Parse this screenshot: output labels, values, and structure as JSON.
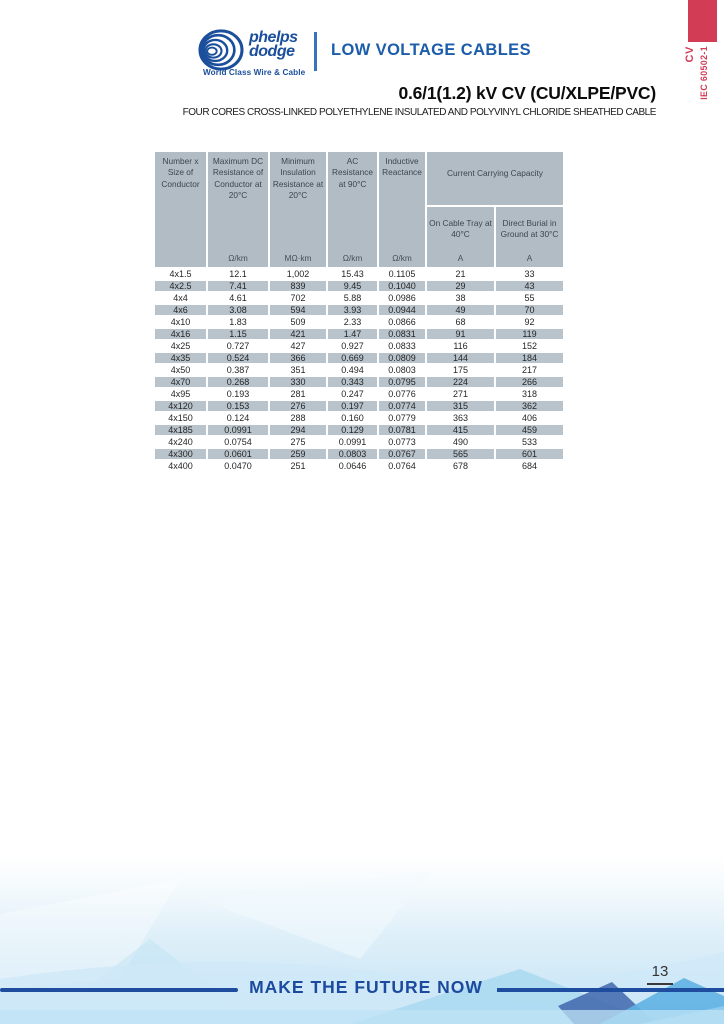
{
  "header": {
    "logo": {
      "name_line1": "phelps",
      "name_line2": "dodge",
      "tagline": "World Class Wire & Cable"
    },
    "banner": "LOW VOLTAGE CABLES"
  },
  "side_tab": {
    "product": "CV",
    "standard": "IEC 60502-1"
  },
  "title": "0.6/1(1.2) kV CV (CU/XLPE/PVC)",
  "subtitle": "FOUR CORES CROSS-LINKED POLYETHYLENE INSULATED AND POLYVINYL CHLORIDE SHEATHED CABLE",
  "table": {
    "group_header": "Current Carrying Capacity",
    "columns": [
      {
        "label": "Number x Size of Conductor",
        "unit": ""
      },
      {
        "label": "Maximum DC Resistance of Conductor at 20°C",
        "unit": "Ω/km"
      },
      {
        "label": "Minimum Insulation Resistance at 20°C",
        "unit": "MΩ·km"
      },
      {
        "label": "AC Resistance at 90°C",
        "unit": "Ω/km"
      },
      {
        "label": "Inductive Reactance",
        "unit": "Ω/km"
      },
      {
        "label": "On Cable Tray at 40°C",
        "unit": "A"
      },
      {
        "label": "Direct Burial in Ground at 30°C",
        "unit": "A"
      }
    ],
    "rows": [
      [
        "4x1.5",
        "12.1",
        "1,002",
        "15.43",
        "0.1105",
        "21",
        "33"
      ],
      [
        "4x2.5",
        "7.41",
        "839",
        "9.45",
        "0.1040",
        "29",
        "43"
      ],
      [
        "4x4",
        "4.61",
        "702",
        "5.88",
        "0.0986",
        "38",
        "55"
      ],
      [
        "4x6",
        "3.08",
        "594",
        "3.93",
        "0.0944",
        "49",
        "70"
      ],
      [
        "4x10",
        "1.83",
        "509",
        "2.33",
        "0.0866",
        "68",
        "92"
      ],
      [
        "4x16",
        "1.15",
        "421",
        "1.47",
        "0.0831",
        "91",
        "119"
      ],
      [
        "4x25",
        "0.727",
        "427",
        "0.927",
        "0.0833",
        "116",
        "152"
      ],
      [
        "4x35",
        "0.524",
        "366",
        "0.669",
        "0.0809",
        "144",
        "184"
      ],
      [
        "4x50",
        "0.387",
        "351",
        "0.494",
        "0.0803",
        "175",
        "217"
      ],
      [
        "4x70",
        "0.268",
        "330",
        "0.343",
        "0.0795",
        "224",
        "266"
      ],
      [
        "4x95",
        "0.193",
        "281",
        "0.247",
        "0.0776",
        "271",
        "318"
      ],
      [
        "4x120",
        "0.153",
        "276",
        "0.197",
        "0.0774",
        "315",
        "362"
      ],
      [
        "4x150",
        "0.124",
        "288",
        "0.160",
        "0.0779",
        "363",
        "406"
      ],
      [
        "4x185",
        "0.0991",
        "294",
        "0.129",
        "0.0781",
        "415",
        "459"
      ],
      [
        "4x240",
        "0.0754",
        "275",
        "0.0991",
        "0.0773",
        "490",
        "533"
      ],
      [
        "4x300",
        "0.0601",
        "259",
        "0.0803",
        "0.0767",
        "565",
        "601"
      ],
      [
        "4x400",
        "0.0470",
        "251",
        "0.0646",
        "0.0764",
        "678",
        "684"
      ]
    ]
  },
  "footer": {
    "slogan": "MAKE THE FUTURE NOW",
    "page_number": "13"
  },
  "colors": {
    "brand_blue": "#1b4f9c",
    "banner_blue": "#1b5cab",
    "accent_red": "#d23c55",
    "header_gray": "#b2bcc4",
    "row_gray": "#b9c3cb",
    "footer_navy": "#1e4da0",
    "slogan_navy": "#1b4a9e"
  }
}
